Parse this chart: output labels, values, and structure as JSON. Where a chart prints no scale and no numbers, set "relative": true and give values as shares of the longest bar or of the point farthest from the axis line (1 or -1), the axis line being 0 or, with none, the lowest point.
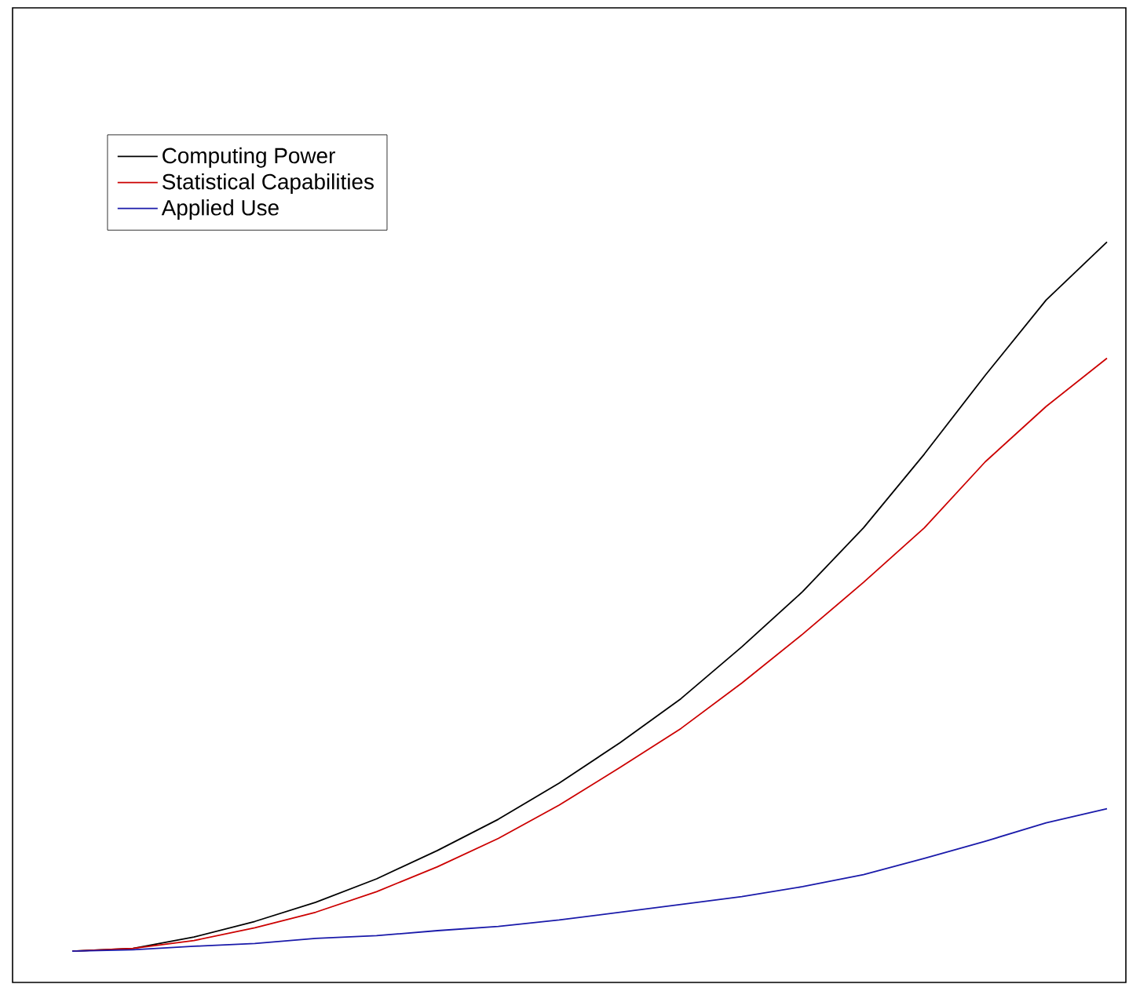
{
  "chart_data": {
    "type": "line",
    "relative": true,
    "legend": "top left",
    "categories": [
      null,
      null,
      null,
      null,
      null,
      null,
      null,
      null,
      null,
      null,
      null,
      null,
      null,
      null,
      null,
      null,
      null,
      null
    ],
    "series": [
      {
        "name": "Computing Power",
        "color": "#000000",
        "values": [
          0,
          0.004,
          0.02,
          0.042,
          0.069,
          0.102,
          0.142,
          0.186,
          0.237,
          0.294,
          0.356,
          0.429,
          0.507,
          0.597,
          0.701,
          0.812,
          0.918,
          1
        ]
      },
      {
        "name": "Statistical Capabilities",
        "color": "#cc0000",
        "values": [
          0,
          0.004,
          0.015,
          0.033,
          0.055,
          0.084,
          0.119,
          0.159,
          0.206,
          0.259,
          0.314,
          0.378,
          0.447,
          0.52,
          0.597,
          0.69,
          0.768,
          0.836
        ]
      },
      {
        "name": "Applied Use",
        "color": "#1a1aaa",
        "values": [
          0,
          0.002,
          0.007,
          0.011,
          0.018,
          0.022,
          0.029,
          0.035,
          0.044,
          0.055,
          0.066,
          0.077,
          0.091,
          0.108,
          0.131,
          0.155,
          0.181,
          0.201
        ]
      }
    ]
  }
}
